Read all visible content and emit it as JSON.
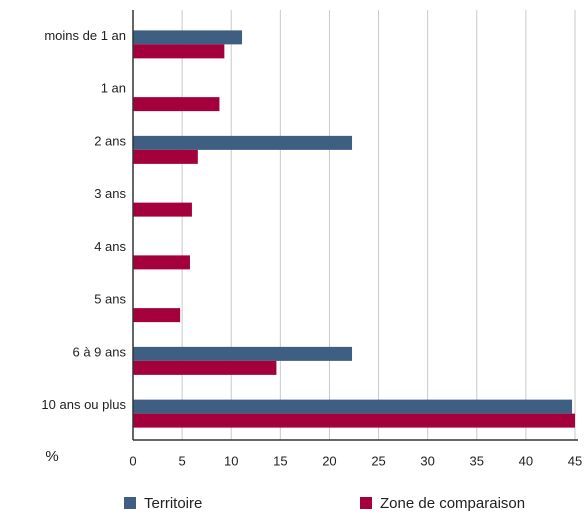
{
  "chart_data": {
    "type": "hbar",
    "categories": [
      "moins de 1 an",
      "1 an",
      "2 ans",
      "3 ans",
      "4 ans",
      "5 ans",
      "6 à 9 ans",
      "10 ans ou plus"
    ],
    "series": [
      {
        "name": "Territoire",
        "color": "#3f5f82",
        "values": [
          11.1,
          0,
          22.3,
          0,
          0,
          0,
          22.3,
          44.7
        ]
      },
      {
        "name": "Zone de comparaison",
        "color": "#a3003c",
        "values": [
          9.3,
          8.8,
          6.6,
          6.0,
          5.8,
          4.8,
          14.6,
          45
        ]
      }
    ],
    "xlabel": "%",
    "xlim": [
      0,
      45
    ],
    "xticks": [
      0,
      5,
      10,
      15,
      20,
      25,
      30,
      35,
      40,
      45
    ],
    "grid": true,
    "legend": "bottom"
  }
}
